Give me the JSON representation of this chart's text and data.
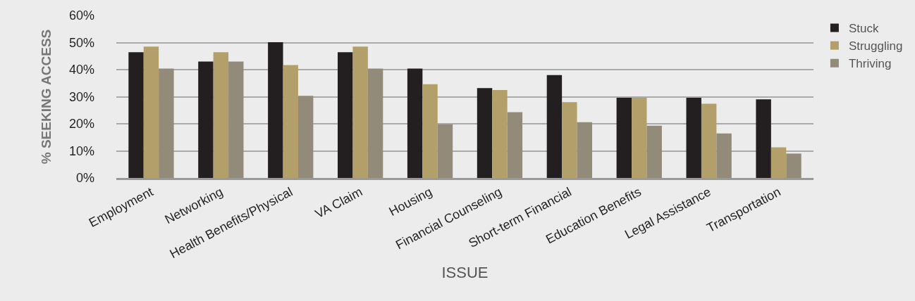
{
  "chart_data": {
    "type": "bar",
    "xlabel": "ISSUE",
    "ylabel": "% SEEKING ACCESS",
    "categories": [
      "Employment",
      "Networking",
      "Health Benefits/Physical",
      "VA Claim",
      "Housing",
      "Financial Counseling",
      "Short-term Financial",
      "Education Benefits",
      "Legal Assistance",
      "Transportation"
    ],
    "series": [
      {
        "name": "Stuck",
        "color": "#231f20",
        "values": [
          46.4,
          43.0,
          50.1,
          46.4,
          40.4,
          33.2,
          38.0,
          29.6,
          29.6,
          29.0
        ]
      },
      {
        "name": "Struggling",
        "color": "#b39f69",
        "values": [
          48.5,
          46.4,
          41.7,
          48.5,
          34.6,
          32.5,
          28.0,
          29.6,
          27.4,
          11.3
        ]
      },
      {
        "name": "Thriving",
        "color": "#938b7a",
        "values": [
          40.4,
          43.0,
          30.3,
          40.4,
          19.8,
          24.3,
          20.6,
          19.3,
          16.4,
          9.0
        ]
      }
    ],
    "ylim": [
      0,
      60
    ],
    "yticks": [
      {
        "value": 0,
        "label": "0%"
      },
      {
        "value": 10,
        "label": "10%"
      },
      {
        "value": 20,
        "label": "20%"
      },
      {
        "value": 30,
        "label": "30%"
      },
      {
        "value": 40,
        "label": "40%"
      },
      {
        "value": 50,
        "label": "50%"
      },
      {
        "value": 60,
        "label": "60%"
      }
    ],
    "grid": "y",
    "legend": "top right"
  }
}
